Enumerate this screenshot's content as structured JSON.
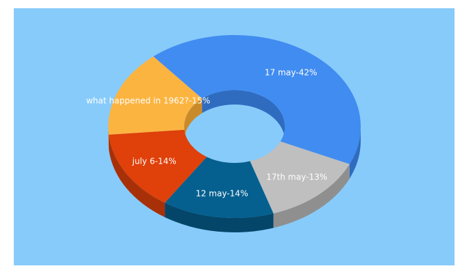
{
  "chart_data": {
    "type": "pie",
    "variant": "3d-donut",
    "title": "",
    "background_color": "#87cbfa",
    "slices": [
      {
        "label": "17 may",
        "value": 42,
        "display": "17 may-42%",
        "color": "#418cf0",
        "side_color": "#2f6cc0"
      },
      {
        "label": "17th may",
        "value": 13,
        "display": "17th may-13%",
        "color": "#bfbfbf",
        "side_color": "#8f8f8f"
      },
      {
        "label": "12 may",
        "value": 14,
        "display": "12 may-14%",
        "color": "#05608f",
        "side_color": "#04466a"
      },
      {
        "label": "july 6",
        "value": 14,
        "display": "july 6-14%",
        "color": "#e0400a",
        "side_color": "#a83008"
      },
      {
        "label": "what happened in 1962?",
        "value": 15,
        "display": "what happened in 1962?-15%",
        "color": "#fcb441",
        "side_color": "#c98a2a"
      }
    ]
  }
}
